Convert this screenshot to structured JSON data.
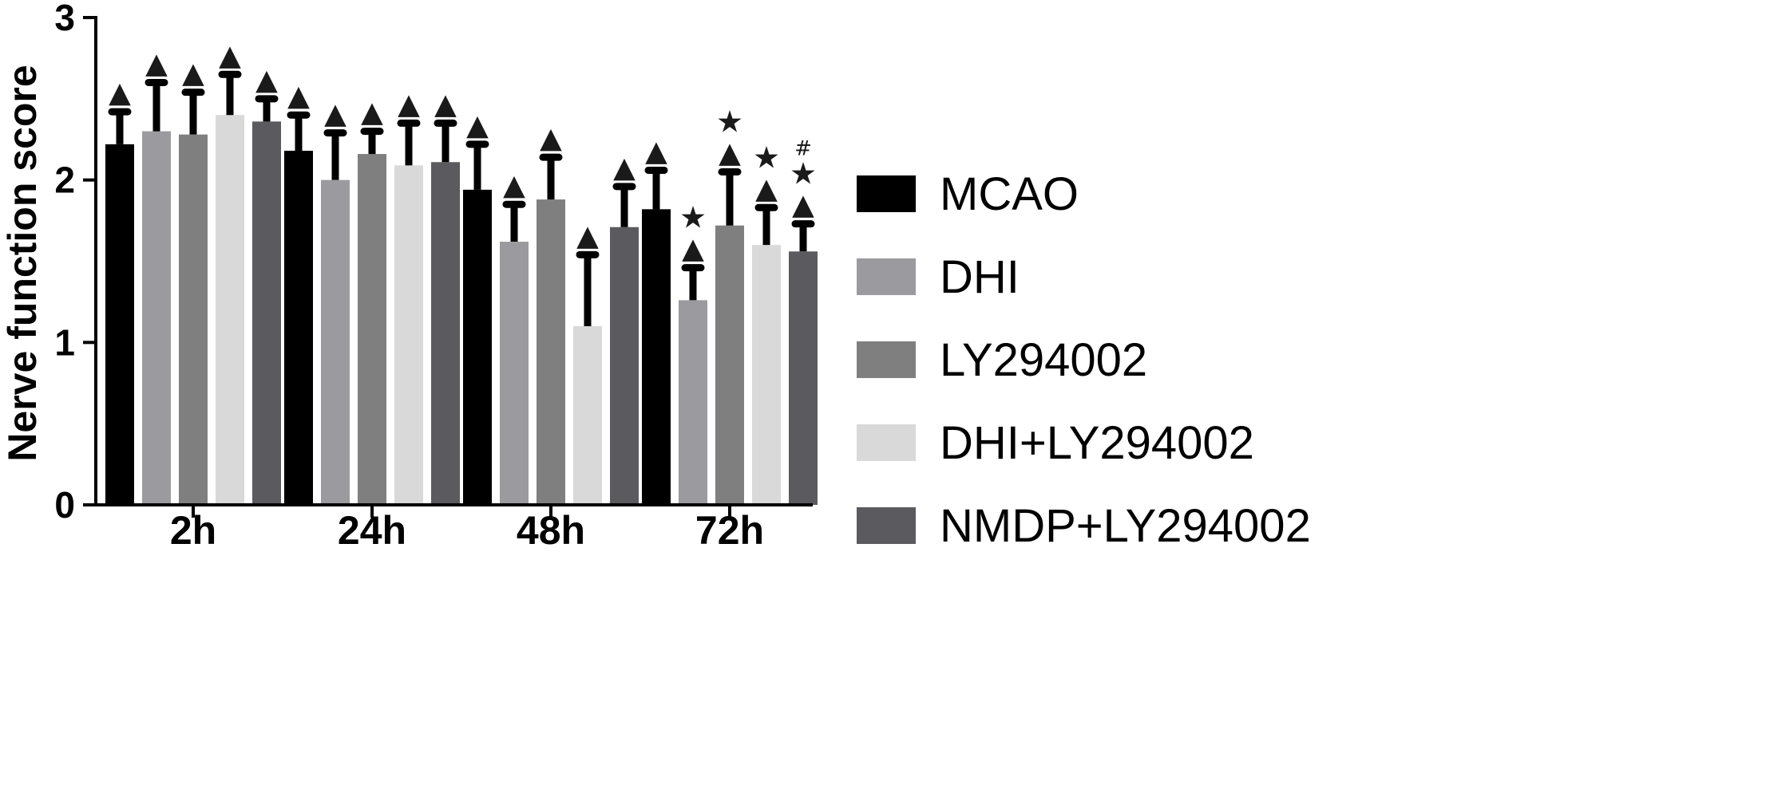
{
  "chart_data": {
    "type": "bar",
    "title": "",
    "ylabel": "Nerve function score",
    "xlabel": "",
    "ylim": [
      0,
      3
    ],
    "yticks": [
      0,
      1,
      2,
      3
    ],
    "yticks_labels": [
      "0",
      "1",
      "2",
      "3"
    ],
    "grid": false,
    "legend_position": "right",
    "categories": [
      "2h",
      "24h",
      "48h",
      "72h"
    ],
    "series": [
      {
        "name": "MCAO",
        "color": "#000000",
        "values": [
          2.22,
          2.18,
          1.94,
          1.82
        ],
        "errors": [
          0.2,
          0.22,
          0.28,
          0.24
        ],
        "markers": [
          [
            "▲"
          ],
          [
            "▲"
          ],
          [
            "▲"
          ],
          [
            "▲"
          ]
        ]
      },
      {
        "name": "DHI",
        "color": "#9b9b9f",
        "values": [
          2.3,
          2.0,
          1.62,
          1.26
        ],
        "errors": [
          0.3,
          0.29,
          0.23,
          0.2
        ],
        "markers": [
          [
            "▲"
          ],
          [
            "▲"
          ],
          [
            "▲"
          ],
          [
            "▲",
            "★"
          ]
        ]
      },
      {
        "name": "LY294002",
        "color": "#7f7f7f",
        "values": [
          2.28,
          2.16,
          1.88,
          1.72
        ],
        "errors": [
          0.26,
          0.14,
          0.26,
          0.33
        ],
        "markers": [
          [
            "▲"
          ],
          [
            "▲"
          ],
          [
            "▲"
          ],
          [
            "▲",
            "★"
          ]
        ]
      },
      {
        "name": "DHI+LY294002",
        "color": "#d9d9d9",
        "values": [
          2.4,
          2.09,
          1.1,
          1.6
        ],
        "errors": [
          0.25,
          0.26,
          0.44,
          0.23
        ],
        "markers": [
          [
            "▲"
          ],
          [
            "▲"
          ],
          [
            "▲"
          ],
          [
            "▲",
            "★"
          ]
        ]
      },
      {
        "name": "NMDP+LY294002",
        "color": "#5b5b5f",
        "values": [
          2.36,
          2.11,
          1.71,
          1.56
        ],
        "errors": [
          0.14,
          0.24,
          0.25,
          0.17
        ],
        "markers": [
          [
            "▲"
          ],
          [
            "▲"
          ],
          [
            "▲"
          ],
          [
            "▲",
            "★",
            "#"
          ]
        ]
      }
    ]
  }
}
